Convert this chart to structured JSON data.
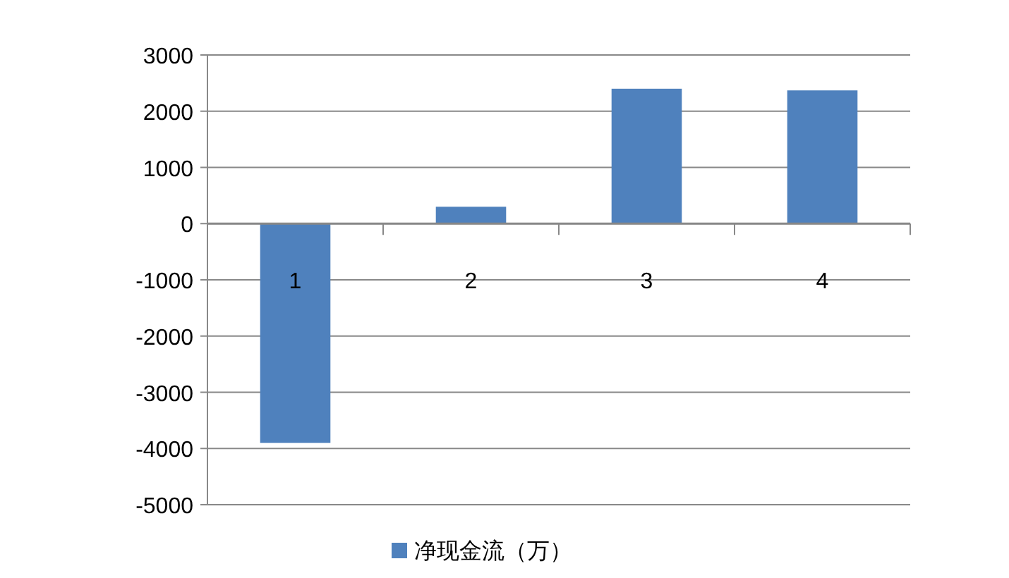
{
  "chart_data": {
    "type": "bar",
    "categories": [
      "1",
      "2",
      "3",
      "4"
    ],
    "series": [
      {
        "name": "净现金流（万）",
        "color": "#4f81bd",
        "values": [
          -3900,
          300,
          2400,
          2370
        ]
      }
    ],
    "ylim": [
      -5000,
      3000
    ],
    "yticks": [
      -5000,
      -4000,
      -3000,
      -2000,
      -1000,
      0,
      1000,
      2000,
      3000
    ],
    "grid": "y",
    "legend": "bottom"
  }
}
